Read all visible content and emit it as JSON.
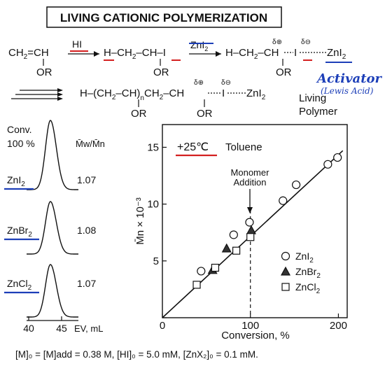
{
  "title": "LIVING CATIONIC POLYMERIZATION",
  "scheme": {
    "monomer_left": "CH",
    "monomer_sub": "2",
    "monomer_right": "=CH",
    "monomer_or": "OR",
    "reagent_hi": "HI",
    "adduct_main": "H–CH",
    "adduct_sub": "2",
    "adduct_tail": "–CH–I",
    "adduct_or": "OR",
    "reagent_zni": "ZnI",
    "reagent_zni_sub": "2",
    "activated_main": "H–CH",
    "activated_sub": "2",
    "activated_mid": "–CH",
    "activated_i": "I",
    "activated_zn": "ZnI",
    "activated_zn_sub": "2",
    "activated_or": "OR",
    "delta_plus": "δ⊕",
    "delta_minus": "δ⊖",
    "activator_label": "Activator",
    "activator_sub": "(Lewis Acid)",
    "polymer_head": "H–(CH",
    "polymer_sub2": "2",
    "polymer_mid": "–CH)",
    "polymer_n": "n",
    "polymer_ch2": "CH",
    "polymer_ch2_sub": "2",
    "polymer_ch": "–CH",
    "polymer_i": "I",
    "polymer_zn": "ZnI",
    "polymer_zn_sub": "2",
    "polymer_or1": "OR",
    "polymer_or2": "OR",
    "living_label_1": "Living",
    "living_label_2": "Polymer"
  },
  "gpc": {
    "conv_label_1": "Conv.",
    "conv_label_2": "100 %",
    "mwmn_header": "M̄w/M̄n",
    "traces": [
      {
        "catalyst": "ZnI",
        "sub": "2",
        "mwmn": "1.07"
      },
      {
        "catalyst": "ZnBr",
        "sub": "2",
        "mwmn": "1.08"
      },
      {
        "catalyst": "ZnCl",
        "sub": "2",
        "mwmn": "1.07"
      }
    ],
    "axis_ticks": [
      "40",
      "45"
    ],
    "axis_label": "EV, mL"
  },
  "chart_data": {
    "type": "scatter",
    "title": "Toluene",
    "temperature_label": "+25℃",
    "xlabel": "Conversion, %",
    "ylabel": "M̄n × 10⁻³",
    "xlim": [
      0,
      210
    ],
    "ylim": [
      0,
      17
    ],
    "xticks": [
      0,
      100,
      200
    ],
    "yticks": [
      0,
      5,
      10,
      15
    ],
    "annotation": {
      "text_1": "Monomer",
      "text_2": "Addition",
      "x": 100
    },
    "fit_line": {
      "x": [
        0,
        205
      ],
      "y": [
        0,
        14.7
      ]
    },
    "legend_position": "bottom-right",
    "series": [
      {
        "name": "ZnI",
        "name_sub": "2",
        "marker": "circle",
        "points": [
          [
            44,
            4.1
          ],
          [
            81,
            7.3
          ],
          [
            99,
            8.4
          ],
          [
            137,
            10.3
          ],
          [
            152,
            11.7
          ],
          [
            188,
            13.5
          ],
          [
            199,
            14.1
          ]
        ]
      },
      {
        "name": "ZnBr",
        "name_sub": "2",
        "marker": "triangle",
        "points": [
          [
            57,
            4.2
          ],
          [
            73,
            6.1
          ],
          [
            101,
            7.7
          ]
        ]
      },
      {
        "name": "ZnCl",
        "name_sub": "2",
        "marker": "square",
        "points": [
          [
            39,
            2.9
          ],
          [
            60,
            4.4
          ],
          [
            84,
            5.9
          ],
          [
            100,
            7.1
          ]
        ]
      }
    ]
  },
  "conditions": "[M]₀ = [M]add = 0.38 M, [HI]₀ = 5.0 mM, [ZnX₂]₀ = 0.1 mM.",
  "colors": {
    "ink": "#111111",
    "accent_blue": "#1d3fb8",
    "accent_red": "#d42020"
  }
}
